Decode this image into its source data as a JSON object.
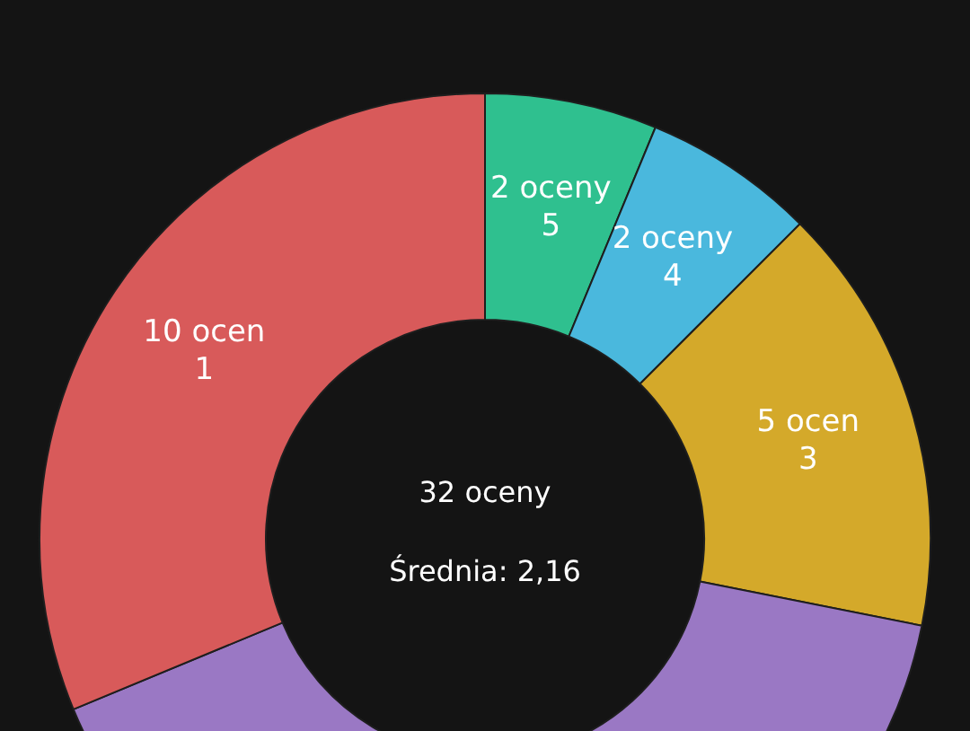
{
  "chart_data": {
    "type": "donut",
    "categories": [
      "5",
      "4",
      "3",
      null,
      "1"
    ],
    "values": [
      2,
      2,
      5,
      13,
      10
    ],
    "value_labels": [
      "2 oceny",
      "2 oceny",
      "5 ocen",
      null,
      "10 ocen"
    ],
    "colors": [
      "#2fc08f",
      "#4ab8dd",
      "#d4a92a",
      "#9a78c4",
      "#d85a5a"
    ],
    "annotations": [
      "32 oceny",
      "Średnia: 2,16"
    ],
    "legend": false
  }
}
